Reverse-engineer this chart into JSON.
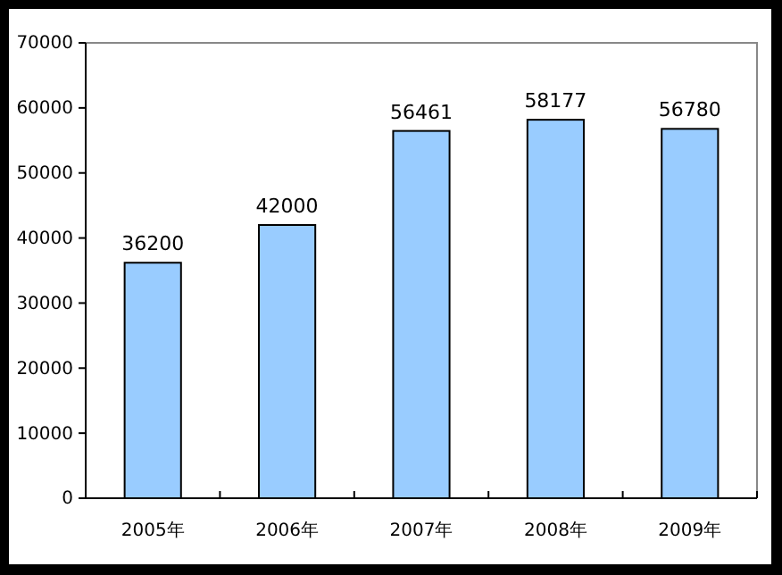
{
  "chart_data": {
    "type": "bar",
    "categories": [
      "2005年",
      "2006年",
      "2007年",
      "2008年",
      "2009年"
    ],
    "values": [
      36200,
      42000,
      56461,
      58177,
      56780
    ],
    "color": "#99ccff",
    "data_labels": true,
    "grid": false,
    "ylim": [
      0,
      70000
    ],
    "yticks": [
      0,
      10000,
      20000,
      30000,
      40000,
      50000,
      60000,
      70000
    ]
  }
}
